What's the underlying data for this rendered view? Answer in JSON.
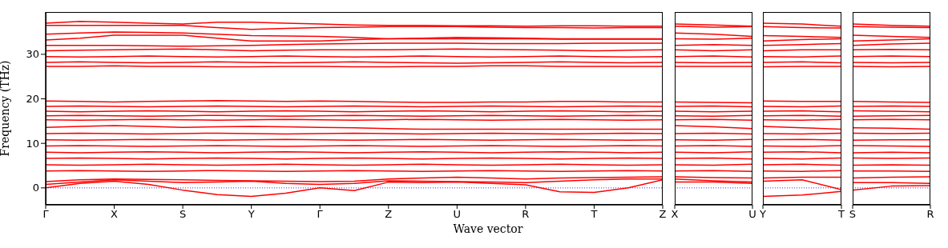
{
  "chart_data": [
    {
      "type": "line",
      "xlabel": "Wave vector",
      "ylabel": "Frequency (THz)",
      "ylim": [
        -3.8,
        39.5
      ],
      "yticks": [
        0,
        10,
        20,
        30
      ],
      "marker": "none",
      "line_style": "solid",
      "categories": [
        "Γ",
        null,
        "X",
        null,
        "S",
        null,
        "Y",
        null,
        "Γ",
        null,
        "Z",
        null,
        "U",
        null,
        "R",
        null,
        "T",
        null,
        "Z"
      ],
      "ref_lines": [
        {
          "axis": "y",
          "value": 0,
          "color": "#0000ff",
          "line_style": "dotted"
        }
      ],
      "series": [
        {
          "color": "#ff0000",
          "values": [
            37,
            37.4,
            37.2,
            37,
            36.8,
            37.2,
            37.2,
            37,
            36.8,
            36.6,
            36.5,
            36.5,
            36.4,
            36.4,
            36.3,
            36.4,
            36.4,
            36.3,
            36.3
          ]
        },
        {
          "color": "#ff0000",
          "values": [
            36.5,
            36.5,
            36.5,
            36.5,
            36.5,
            36,
            35.6,
            35.8,
            36,
            36.1,
            36.2,
            36.2,
            36.2,
            36.1,
            36,
            36,
            35.9,
            36,
            36
          ]
        },
        {
          "color": "#ff0000",
          "values": [
            34.5,
            34.8,
            35,
            34.9,
            34.8,
            34.5,
            34.2,
            34.1,
            34,
            33.8,
            33.5,
            33.6,
            33.8,
            33.7,
            33.6,
            33.5,
            33.5,
            33.5,
            33.5
          ]
        },
        {
          "color": "#ff0000",
          "values": [
            33.2,
            33.6,
            34.3,
            34.3,
            34.3,
            33.6,
            33,
            33,
            33,
            33.3,
            33.5,
            33.5,
            33.5,
            33.5,
            33.5,
            33.4,
            33.4,
            33.4,
            33.4
          ]
        },
        {
          "color": "#ff0000",
          "values": [
            32,
            32,
            32,
            31.9,
            31.8,
            31.9,
            32,
            32.2,
            32.3,
            32.4,
            32.5,
            32.5,
            32.5,
            32.4,
            32.4,
            32.4,
            32.5,
            32.5,
            32.5
          ]
        },
        {
          "color": "#ff0000",
          "values": [
            30.8,
            30.9,
            31,
            31.1,
            31.2,
            31,
            30.8,
            30.9,
            31,
            31,
            31,
            31.1,
            31.2,
            31.1,
            31,
            30.9,
            30.8,
            30.9,
            31
          ]
        },
        {
          "color": "#ff0000",
          "values": [
            29.5,
            29.4,
            29.5,
            29.6,
            29.5,
            29.4,
            29.5,
            29.6,
            29.5,
            29.4,
            29.5,
            29.6,
            29.5,
            29.4,
            29.5,
            29.6,
            29.5,
            29.4,
            29.5
          ]
        },
        {
          "color": "#ff0000",
          "values": [
            28.2,
            28.3,
            28.2,
            28.1,
            28.2,
            28.3,
            28.2,
            28.1,
            28.2,
            28.3,
            28.2,
            28.1,
            28,
            28.1,
            28.2,
            28.3,
            28.2,
            28.1,
            28.2
          ]
        },
        {
          "color": "#ff0000",
          "values": [
            27.3,
            27.3,
            27.4,
            27.3,
            27.3,
            27.2,
            27.2,
            27.3,
            27.3,
            27.2,
            27.2,
            27.3,
            27.3,
            27.4,
            27.4,
            27.3,
            27.3,
            27.3,
            27.3
          ]
        },
        {
          "color": "#ff0000",
          "values": [
            19.5,
            19.4,
            19.3,
            19.4,
            19.5,
            19.6,
            19.5,
            19.4,
            19.5,
            19.4,
            19.3,
            19.2,
            19.2,
            19.3,
            19.3,
            19.4,
            19.4,
            19.3,
            19.3
          ]
        },
        {
          "color": "#ff0000",
          "values": [
            18.3,
            18.4,
            18.3,
            18.2,
            18.3,
            18.4,
            18.3,
            18.2,
            18.3,
            18.4,
            18.3,
            18.2,
            18.3,
            18.4,
            18.3,
            18.2,
            18.3,
            18.4,
            18.3
          ]
        },
        {
          "color": "#ff0000",
          "values": [
            17.2,
            17.1,
            17.2,
            17.3,
            17.2,
            17.1,
            17.2,
            17.3,
            17.2,
            17.1,
            17.2,
            17.3,
            17.2,
            17.1,
            17.2,
            17.3,
            17.2,
            17.1,
            17.2
          ]
        },
        {
          "color": "#ff0000",
          "values": [
            16.2,
            16.3,
            16.2,
            16.1,
            16.2,
            16.3,
            16.2,
            16.1,
            16.2,
            16.3,
            16.2,
            16.1,
            16.2,
            16.3,
            16.2,
            16.1,
            16.2,
            16.3,
            16.2
          ]
        },
        {
          "color": "#ff0000",
          "values": [
            15.3,
            15.2,
            15.3,
            15.4,
            15.3,
            15.2,
            15.3,
            15.4,
            15.3,
            15.2,
            15.3,
            15.4,
            15.3,
            15.2,
            15.3,
            15.4,
            15.3,
            15.2,
            15.3
          ]
        },
        {
          "color": "#ff0000",
          "values": [
            13.6,
            13.8,
            14,
            13.8,
            13.6,
            13.7,
            13.8,
            13.7,
            13.6,
            13.5,
            13.3,
            13.2,
            13.2,
            13.2,
            13.2,
            13.2,
            13.2,
            13.2,
            13.2
          ]
        },
        {
          "color": "#ff0000",
          "values": [
            12.2,
            12.3,
            12.2,
            12.1,
            12.2,
            12.3,
            12.2,
            12.1,
            12.2,
            12.3,
            12.2,
            12.1,
            12.2,
            12.3,
            12.2,
            12.1,
            12.2,
            12.3,
            12.2
          ]
        },
        {
          "color": "#ff0000",
          "values": [
            10.8,
            10.7,
            10.8,
            10.9,
            10.8,
            10.7,
            10.8,
            10.9,
            10.8,
            10.7,
            10.8,
            10.9,
            10.8,
            10.7,
            10.8,
            10.9,
            10.8,
            10.7,
            10.8
          ]
        },
        {
          "color": "#ff0000",
          "values": [
            9.4,
            9.5,
            9.4,
            9.3,
            9.4,
            9.5,
            9.4,
            9.3,
            9.4,
            9.5,
            9.4,
            9.3,
            9.4,
            9.5,
            9.4,
            9.3,
            9.4,
            9.5,
            9.4
          ]
        },
        {
          "color": "#ff0000",
          "values": [
            8,
            7.9,
            8,
            8.1,
            8,
            7.9,
            8,
            8.1,
            8,
            7.9,
            8,
            8.1,
            8,
            7.9,
            8,
            8.1,
            8,
            7.9,
            8
          ]
        },
        {
          "color": "#ff0000",
          "values": [
            6.6,
            6.7,
            6.6,
            6.5,
            6.6,
            6.7,
            6.6,
            6.5,
            6.6,
            6.7,
            6.6,
            6.5,
            6.6,
            6.7,
            6.6,
            6.5,
            6.6,
            6.7,
            6.6
          ]
        },
        {
          "color": "#ff0000",
          "values": [
            5.2,
            5.1,
            5.2,
            5.3,
            5.2,
            5.1,
            5.2,
            5.3,
            5.2,
            5.1,
            5.2,
            5.3,
            5.2,
            5.1,
            5.2,
            5.3,
            5.2,
            5.1,
            5.2
          ]
        },
        {
          "color": "#ff0000",
          "values": [
            3.8,
            3.9,
            3.8,
            3.7,
            3.8,
            3.9,
            3.8,
            3.7,
            3.8,
            3.9,
            3.8,
            3.7,
            3.8,
            3.9,
            3.8,
            3.7,
            3.8,
            3.9,
            3.8
          ]
        },
        {
          "color": "#ff0000",
          "values": [
            1.4,
            1.8,
            2,
            1.9,
            1.8,
            1.7,
            1.6,
            1.5,
            1.4,
            1.5,
            2,
            2.2,
            2.4,
            2.2,
            2,
            2.2,
            2.3,
            2.4,
            2.5
          ]
        },
        {
          "color": "#ff0000",
          "values": [
            0.8,
            1.3,
            1.8,
            1.5,
            1.2,
            1.3,
            1.5,
            1,
            0.8,
            1,
            1.6,
            1.5,
            1.4,
            1.3,
            1.2,
            1.5,
            1.8,
            2,
            2
          ]
        },
        {
          "color": "#ff0000",
          "values": [
            0,
            1,
            1.5,
            0.8,
            -0.5,
            -1.5,
            -1.9,
            -1.2,
            0,
            -0.6,
            1.3,
            1.2,
            1.3,
            1,
            0.7,
            -0.9,
            -1,
            0,
            1.8
          ]
        }
      ]
    },
    {
      "type": "line",
      "ylim": [
        -3.8,
        39.5
      ],
      "tick_labels": "x",
      "marker": "none",
      "line_style": "solid",
      "categories": [
        "X",
        null,
        "U"
      ],
      "ref_lines": [
        {
          "axis": "y",
          "value": 0,
          "color": "#0000ff",
          "line_style": "dotted"
        }
      ],
      "series": [
        {
          "color": "#ff0000",
          "values": [
            36.8,
            36.6,
            36.3
          ]
        },
        {
          "color": "#ff0000",
          "values": [
            36.3,
            36.1,
            36.2
          ]
        },
        {
          "color": "#ff0000",
          "values": [
            34.8,
            34.5,
            34
          ]
        },
        {
          "color": "#ff0000",
          "values": [
            33.5,
            33.4,
            33.6
          ]
        },
        {
          "color": "#ff0000",
          "values": [
            32,
            32.2,
            32
          ]
        },
        {
          "color": "#ff0000",
          "values": [
            31,
            30.8,
            31
          ]
        },
        {
          "color": "#ff0000",
          "values": [
            29.5,
            29.6,
            29.4
          ]
        },
        {
          "color": "#ff0000",
          "values": [
            28.2,
            28.1,
            28.2
          ]
        },
        {
          "color": "#ff0000",
          "values": [
            27.3,
            27.3,
            27.3
          ]
        },
        {
          "color": "#ff0000",
          "values": [
            19.3,
            19.2,
            19.1
          ]
        },
        {
          "color": "#ff0000",
          "values": [
            18.3,
            18.4,
            18.2
          ]
        },
        {
          "color": "#ff0000",
          "values": [
            17.2,
            17.1,
            17.2
          ]
        },
        {
          "color": "#ff0000",
          "values": [
            16.2,
            16.1,
            16.3
          ]
        },
        {
          "color": "#ff0000",
          "values": [
            15.3,
            15.4,
            15.2
          ]
        },
        {
          "color": "#ff0000",
          "values": [
            14,
            13.7,
            13.3
          ]
        },
        {
          "color": "#ff0000",
          "values": [
            12.2,
            12.3,
            12.1
          ]
        },
        {
          "color": "#ff0000",
          "values": [
            10.8,
            10.7,
            10.9
          ]
        },
        {
          "color": "#ff0000",
          "values": [
            9.4,
            9.5,
            9.3
          ]
        },
        {
          "color": "#ff0000",
          "values": [
            8,
            7.9,
            8.1
          ]
        },
        {
          "color": "#ff0000",
          "values": [
            6.6,
            6.7,
            6.5
          ]
        },
        {
          "color": "#ff0000",
          "values": [
            5.2,
            5.1,
            5.3
          ]
        },
        {
          "color": "#ff0000",
          "values": [
            3.8,
            3.9,
            3.7
          ]
        },
        {
          "color": "#ff0000",
          "values": [
            2.5,
            2.3,
            2.2
          ]
        },
        {
          "color": "#ff0000",
          "values": [
            2,
            1.6,
            1.3
          ]
        },
        {
          "color": "#ff0000",
          "values": [
            1.3,
            1.3,
            1
          ]
        }
      ]
    },
    {
      "type": "line",
      "ylim": [
        -3.8,
        39.5
      ],
      "tick_labels": "x",
      "marker": "none",
      "line_style": "solid",
      "categories": [
        "Y",
        null,
        "T"
      ],
      "ref_lines": [
        {
          "axis": "y",
          "value": 0,
          "color": "#0000ff",
          "line_style": "dotted"
        }
      ],
      "series": [
        {
          "color": "#ff0000",
          "values": [
            37,
            36.8,
            36.3
          ]
        },
        {
          "color": "#ff0000",
          "values": [
            36.2,
            36,
            35.9
          ]
        },
        {
          "color": "#ff0000",
          "values": [
            34.2,
            34,
            33.8
          ]
        },
        {
          "color": "#ff0000",
          "values": [
            33,
            33.3,
            33.5
          ]
        },
        {
          "color": "#ff0000",
          "values": [
            32,
            32.2,
            32.4
          ]
        },
        {
          "color": "#ff0000",
          "values": [
            30.8,
            31,
            31
          ]
        },
        {
          "color": "#ff0000",
          "values": [
            29.5,
            29.4,
            29.6
          ]
        },
        {
          "color": "#ff0000",
          "values": [
            28.2,
            28.3,
            28.1
          ]
        },
        {
          "color": "#ff0000",
          "values": [
            27.2,
            27.3,
            27.3
          ]
        },
        {
          "color": "#ff0000",
          "values": [
            19.5,
            19.4,
            19.4
          ]
        },
        {
          "color": "#ff0000",
          "values": [
            18.3,
            18.2,
            18.4
          ]
        },
        {
          "color": "#ff0000",
          "values": [
            17.2,
            17.3,
            17.1
          ]
        },
        {
          "color": "#ff0000",
          "values": [
            16.2,
            16.3,
            16.1
          ]
        },
        {
          "color": "#ff0000",
          "values": [
            15.3,
            15.2,
            15.4
          ]
        },
        {
          "color": "#ff0000",
          "values": [
            13.8,
            13.5,
            13.2
          ]
        },
        {
          "color": "#ff0000",
          "values": [
            12.2,
            12.1,
            12.3
          ]
        },
        {
          "color": "#ff0000",
          "values": [
            10.8,
            10.9,
            10.7
          ]
        },
        {
          "color": "#ff0000",
          "values": [
            9.4,
            9.3,
            9.5
          ]
        },
        {
          "color": "#ff0000",
          "values": [
            8,
            8.1,
            7.9
          ]
        },
        {
          "color": "#ff0000",
          "values": [
            6.6,
            6.5,
            6.7
          ]
        },
        {
          "color": "#ff0000",
          "values": [
            5.2,
            5.3,
            5.1
          ]
        },
        {
          "color": "#ff0000",
          "values": [
            3.8,
            3.7,
            3.9
          ]
        },
        {
          "color": "#ff0000",
          "values": [
            2.2,
            2.4,
            2.4
          ]
        },
        {
          "color": "#ff0000",
          "values": [
            1.5,
            1.8,
            -0.4
          ]
        },
        {
          "color": "#ff0000",
          "values": [
            -1.9,
            -1.6,
            -0.8
          ]
        }
      ]
    },
    {
      "type": "line",
      "ylim": [
        -3.8,
        39.5
      ],
      "tick_labels": "x",
      "marker": "none",
      "line_style": "solid",
      "categories": [
        "S",
        null,
        "R"
      ],
      "ref_lines": [
        {
          "axis": "y",
          "value": 0,
          "color": "#0000ff",
          "line_style": "dotted"
        }
      ],
      "series": [
        {
          "color": "#ff0000",
          "values": [
            36.8,
            36.5,
            36.3
          ]
        },
        {
          "color": "#ff0000",
          "values": [
            36.2,
            36.1,
            36
          ]
        },
        {
          "color": "#ff0000",
          "values": [
            34.3,
            34,
            33.8
          ]
        },
        {
          "color": "#ff0000",
          "values": [
            33,
            33.2,
            33.5
          ]
        },
        {
          "color": "#ff0000",
          "values": [
            32,
            32.3,
            32.5
          ]
        },
        {
          "color": "#ff0000",
          "values": [
            31,
            31.1,
            31
          ]
        },
        {
          "color": "#ff0000",
          "values": [
            29.5,
            29.6,
            29.5
          ]
        },
        {
          "color": "#ff0000",
          "values": [
            28.2,
            28.1,
            28.2
          ]
        },
        {
          "color": "#ff0000",
          "values": [
            27.3,
            27.2,
            27.3
          ]
        },
        {
          "color": "#ff0000",
          "values": [
            19.4,
            19.3,
            19.2
          ]
        },
        {
          "color": "#ff0000",
          "values": [
            18.3,
            18.4,
            18.3
          ]
        },
        {
          "color": "#ff0000",
          "values": [
            17.3,
            17.2,
            17.1
          ]
        },
        {
          "color": "#ff0000",
          "values": [
            16.1,
            16.2,
            16.3
          ]
        },
        {
          "color": "#ff0000",
          "values": [
            15.3,
            15.4,
            15.3
          ]
        },
        {
          "color": "#ff0000",
          "values": [
            13.5,
            13.4,
            13.2
          ]
        },
        {
          "color": "#ff0000",
          "values": [
            12.3,
            12.2,
            12.3
          ]
        },
        {
          "color": "#ff0000",
          "values": [
            10.7,
            10.8,
            10.8
          ]
        },
        {
          "color": "#ff0000",
          "values": [
            9.5,
            9.4,
            9.3
          ]
        },
        {
          "color": "#ff0000",
          "values": [
            7.9,
            8,
            7.9
          ]
        },
        {
          "color": "#ff0000",
          "values": [
            6.7,
            6.6,
            6.7
          ]
        },
        {
          "color": "#ff0000",
          "values": [
            5.1,
            5.2,
            5.1
          ]
        },
        {
          "color": "#ff0000",
          "values": [
            3.8,
            3.8,
            3.7
          ]
        },
        {
          "color": "#ff0000",
          "values": [
            2.2,
            2.4,
            2.5
          ]
        },
        {
          "color": "#ff0000",
          "values": [
            1.2,
            1.2,
            1
          ]
        },
        {
          "color": "#ff0000",
          "values": [
            -0.5,
            0.4,
            0.5
          ]
        }
      ]
    }
  ]
}
